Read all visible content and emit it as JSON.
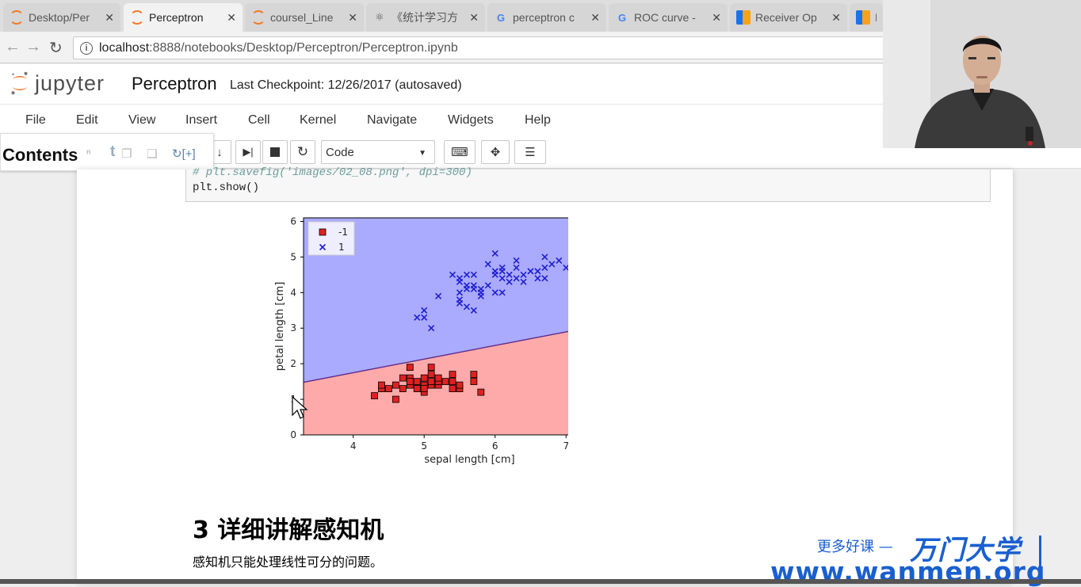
{
  "browser": {
    "tabs": [
      {
        "label": "Desktop/Per",
        "icon": "jupyter-icon",
        "active": false
      },
      {
        "label": "Perceptron",
        "icon": "jupyter-icon",
        "active": true
      },
      {
        "label": "coursel_Line",
        "icon": "jupyter-icon",
        "active": false
      },
      {
        "label": "《统计学习方",
        "icon": "book-icon",
        "active": false
      },
      {
        "label": "perceptron c",
        "icon": "google-icon",
        "active": false
      },
      {
        "label": "ROC curve -",
        "icon": "google-icon",
        "active": false
      },
      {
        "label": "Receiver Op",
        "icon": "bar-chart-icon",
        "active": false
      },
      {
        "label": "R",
        "icon": "bar-chart-icon",
        "active": false
      }
    ],
    "url_host": "localhost",
    "url_path": ":8888/notebooks/Desktop/Perceptron/Perceptron.ipynb"
  },
  "jupyter": {
    "logo_text": "jupyter",
    "notebook_name": "Perceptron",
    "checkpoint": "Last Checkpoint: 12/26/2017 (autosaved)",
    "menu": [
      "File",
      "Edit",
      "View",
      "Insert",
      "Cell",
      "Kernel",
      "Navigate",
      "Widgets",
      "Help"
    ],
    "cell_type": "Code",
    "contents_title": "Contents"
  },
  "cell": {
    "comment_line": "# plt.savefig('images/02_08.png', dpi=300)",
    "code_line": "plt.show()"
  },
  "markdown": {
    "heading": "3  详细讲解感知机",
    "paragraph": "感知机只能处理线性可分的问题。"
  },
  "watermark": {
    "line1": "更多好课 —",
    "brand": "万门大学",
    "url": "www.wanmen.org"
  },
  "chart_data": {
    "type": "scatter",
    "xlabel": "sepal length [cm]",
    "ylabel": "petal length [cm]",
    "xlim": [
      3.3,
      7.98
    ],
    "ylim": [
      0,
      6.1
    ],
    "xticks": [
      4,
      5,
      6,
      7
    ],
    "yticks": [
      0,
      1,
      2,
      3,
      4,
      5,
      6
    ],
    "legend_position": "top-left",
    "decision_boundary": {
      "x": [
        3.3,
        7.98
      ],
      "y": [
        1.48,
        3.27
      ]
    },
    "region_colors": {
      "-1": "#ffaaaa",
      "1": "#aaaaff"
    },
    "series": [
      {
        "name": "-1",
        "marker": "square",
        "color": "#e02020",
        "points": [
          [
            4.3,
            1.1
          ],
          [
            4.4,
            1.3
          ],
          [
            4.5,
            1.3
          ],
          [
            4.6,
            1.4
          ],
          [
            4.6,
            1.0
          ],
          [
            4.7,
            1.3
          ],
          [
            4.7,
            1.6
          ],
          [
            4.8,
            1.4
          ],
          [
            4.8,
            1.6
          ],
          [
            4.8,
            1.9
          ],
          [
            4.9,
            1.4
          ],
          [
            4.9,
            1.5
          ],
          [
            5.0,
            1.4
          ],
          [
            5.0,
            1.2
          ],
          [
            5.0,
            1.6
          ],
          [
            5.1,
            1.4
          ],
          [
            5.1,
            1.5
          ],
          [
            5.1,
            1.7
          ],
          [
            5.1,
            1.9
          ],
          [
            5.2,
            1.4
          ],
          [
            5.2,
            1.5
          ],
          [
            5.3,
            1.5
          ],
          [
            5.4,
            1.3
          ],
          [
            5.4,
            1.5
          ],
          [
            5.4,
            1.7
          ],
          [
            5.5,
            1.3
          ],
          [
            5.5,
            1.4
          ],
          [
            5.7,
            1.5
          ],
          [
            5.7,
            1.7
          ],
          [
            5.8,
            1.2
          ],
          [
            5.0,
            1.3
          ],
          [
            4.4,
            1.4
          ],
          [
            4.9,
            1.3
          ],
          [
            5.2,
            1.6
          ],
          [
            4.8,
            1.5
          ]
        ]
      },
      {
        "name": "1",
        "marker": "x",
        "color": "#2020d0",
        "points": [
          [
            4.9,
            3.3
          ],
          [
            5.0,
            3.5
          ],
          [
            5.0,
            3.3
          ],
          [
            5.1,
            3.0
          ],
          [
            5.2,
            3.9
          ],
          [
            5.4,
            4.5
          ],
          [
            5.5,
            4.0
          ],
          [
            5.5,
            3.8
          ],
          [
            5.5,
            3.7
          ],
          [
            5.5,
            4.4
          ],
          [
            5.6,
            4.5
          ],
          [
            5.6,
            4.1
          ],
          [
            5.6,
            3.6
          ],
          [
            5.6,
            4.2
          ],
          [
            5.7,
            4.2
          ],
          [
            5.7,
            4.5
          ],
          [
            5.7,
            3.5
          ],
          [
            5.7,
            4.1
          ],
          [
            5.8,
            4.1
          ],
          [
            5.8,
            4.0
          ],
          [
            5.8,
            3.9
          ],
          [
            5.9,
            4.2
          ],
          [
            6.0,
            4.5
          ],
          [
            6.0,
            4.0
          ],
          [
            6.0,
            5.1
          ],
          [
            6.0,
            4.6
          ],
          [
            6.1,
            4.0
          ],
          [
            6.1,
            4.7
          ],
          [
            6.1,
            4.6
          ],
          [
            6.2,
            4.5
          ],
          [
            6.2,
            4.3
          ],
          [
            6.3,
            4.7
          ],
          [
            6.3,
            4.4
          ],
          [
            6.3,
            4.9
          ],
          [
            6.4,
            4.3
          ],
          [
            6.4,
            4.5
          ],
          [
            6.5,
            4.6
          ],
          [
            6.6,
            4.4
          ],
          [
            6.6,
            4.6
          ],
          [
            6.7,
            4.4
          ],
          [
            6.7,
            4.7
          ],
          [
            6.7,
            5.0
          ],
          [
            6.8,
            4.8
          ],
          [
            6.9,
            4.9
          ],
          [
            7.0,
            4.7
          ],
          [
            5.9,
            4.8
          ],
          [
            6.1,
            4.4
          ],
          [
            5.5,
            4.3
          ]
        ]
      }
    ]
  }
}
